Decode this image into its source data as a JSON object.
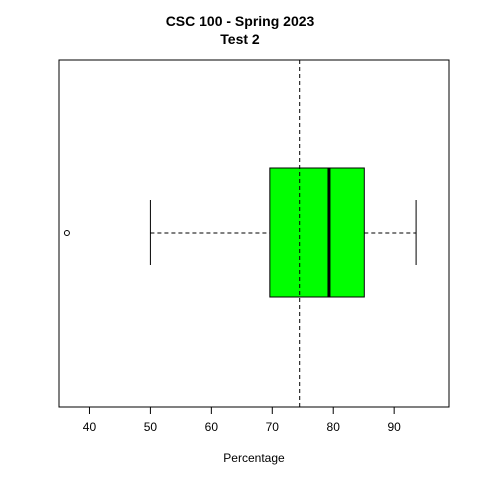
{
  "chart_data": {
    "type": "boxplot",
    "orientation": "horizontal",
    "title": "CSC 100 - Spring 2023",
    "subtitle": "Test 2",
    "xlabel": "Percentage",
    "ylabel": "",
    "xlim": [
      35,
      99
    ],
    "xticks": [
      40,
      50,
      60,
      70,
      80,
      90
    ],
    "box": {
      "whisker_low": 50,
      "q1": 69.6,
      "median": 79.3,
      "q3": 85.1,
      "whisker_high": 93.6,
      "outliers": [
        36.3
      ],
      "fill_color": "#00ff00"
    },
    "reference_line": {
      "value": 74.5,
      "style": "dashed"
    },
    "grid": false,
    "legend": "none"
  }
}
